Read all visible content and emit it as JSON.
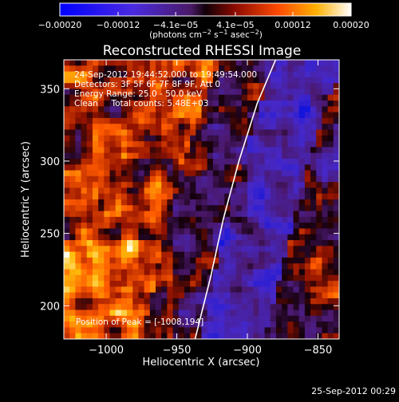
{
  "chart_data": {
    "type": "heatmap",
    "title": "Reconstructed RHESSI Image",
    "xlabel": "Heliocentric X (arcsec)",
    "ylabel": "Heliocentric Y (arcsec)",
    "xlim": [
      -1030,
      -835
    ],
    "ylim": [
      177,
      370
    ],
    "x_ticks": [
      {
        "value": -1000,
        "label": "−1000"
      },
      {
        "value": -950,
        "label": "−950"
      },
      {
        "value": -900,
        "label": "−900"
      },
      {
        "value": -850,
        "label": "−850"
      }
    ],
    "y_ticks": [
      {
        "value": 200,
        "label": "200"
      },
      {
        "value": 250,
        "label": "250"
      },
      {
        "value": 300,
        "label": "300"
      },
      {
        "value": 350,
        "label": "350"
      }
    ],
    "colorbar": {
      "range": [
        -0.0002,
        0.0002
      ],
      "ticks": [
        {
          "value": -0.0002,
          "label": "−0.00020"
        },
        {
          "value": -0.00012,
          "label": "−0.00012"
        },
        {
          "value": -4.1e-05,
          "label": "−4.1e−05"
        },
        {
          "value": 4.1e-05,
          "label": "4.1e−05"
        },
        {
          "value": 0.00012,
          "label": "0.00012"
        },
        {
          "value": 0.0002,
          "label": "0.00020"
        }
      ],
      "unit_main": "(photons cm",
      "unit_exp1": "−2",
      "unit_mid": " s",
      "unit_exp2": "−1",
      "unit_end": " asec",
      "unit_exp3": "−2",
      "unit_close": ")"
    },
    "limb": {
      "points": [
        [
          -937,
          177
        ],
        [
          -926,
          220
        ],
        [
          -917,
          260
        ],
        [
          -906,
          300
        ],
        [
          -893,
          340
        ],
        [
          -880,
          370
        ]
      ]
    },
    "info_lines": [
      "24-Sep-2012 19:44:52.000 to 19:49:54.000",
      "Detectors: 3F 5F 6F 7F 8F 9F, Att 0",
      "Energy Range: 25.0 - 50.0 keV",
      "Clean     Total counts: 5.48E+03"
    ],
    "peak_label": "Position of Peak = [-1008,194]",
    "peak": {
      "x": -1008,
      "y": 194
    }
  },
  "timestamp": "25-Sep-2012 00:29"
}
